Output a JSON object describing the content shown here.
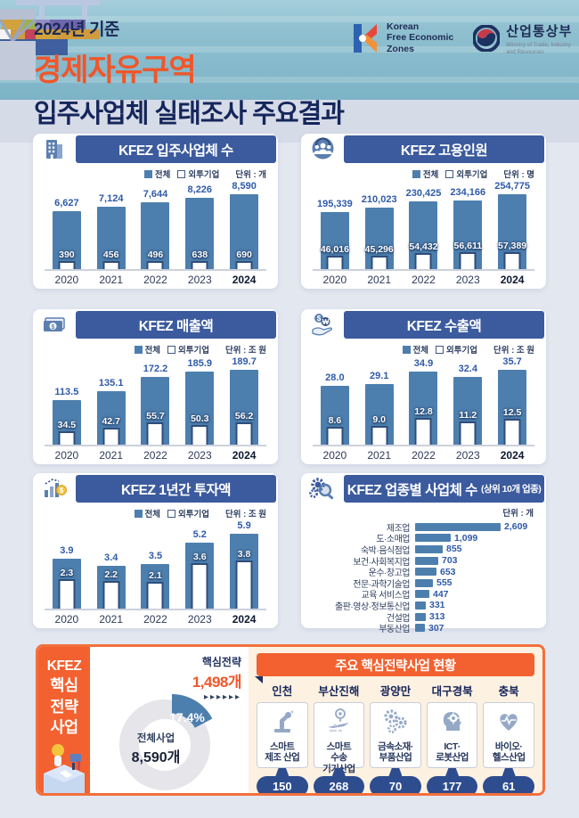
{
  "header": {
    "kicker": "2024년 기준",
    "title_orange": "경제자유구역",
    "title_navy": "입주사업체 실태조사 주요결과",
    "logo_kfez_lines": [
      "Korean",
      "Free Economic",
      "Zones"
    ],
    "logo_motie_name": "산업통상부",
    "logo_motie_sub1": "Ministry of Trade, Industry",
    "logo_motie_sub2": "and Resources"
  },
  "legend": {
    "total": "전체",
    "foreign": "외투기업"
  },
  "colors": {
    "bar_blue": "#4d7fae",
    "header_navy": "#3c5b9e",
    "title_orange": "#f0562a",
    "pill_navy": "#2e4d8f",
    "water_teal": "#7db3c7"
  },
  "chart_data": [
    {
      "type": "bar",
      "title": "KFEZ 입주사업체 수",
      "title_suffix": "",
      "icon": "building-icon",
      "unit_label": "단위 : 개",
      "categories": [
        "2020",
        "2021",
        "2022",
        "2023",
        "2024"
      ],
      "series": [
        {
          "name": "전체",
          "values": [
            6627,
            7124,
            7644,
            8226,
            8590
          ],
          "labels": [
            "6,627",
            "7,124",
            "7,644",
            "8,226",
            "8,590"
          ]
        },
        {
          "name": "외투기업",
          "values": [
            390,
            456,
            496,
            638,
            690
          ],
          "labels": [
            "390",
            "456",
            "496",
            "638",
            "690"
          ]
        }
      ]
    },
    {
      "type": "bar",
      "title": "KFEZ 고용인원",
      "title_suffix": "",
      "icon": "people-icon",
      "unit_label": "단위 : 명",
      "categories": [
        "2020",
        "2021",
        "2022",
        "2023",
        "2024"
      ],
      "series": [
        {
          "name": "전체",
          "values": [
            195339,
            210023,
            230425,
            234166,
            254775
          ],
          "labels": [
            "195,339",
            "210,023",
            "230,425",
            "234,166",
            "254,775"
          ]
        },
        {
          "name": "외투기업",
          "values": [
            46016,
            45296,
            54432,
            56611,
            57389
          ],
          "labels": [
            "46,016",
            "45,296",
            "54,432",
            "56,611",
            "57,389"
          ]
        }
      ]
    },
    {
      "type": "bar",
      "title": "KFEZ 매출액",
      "title_suffix": "",
      "icon": "money-icon",
      "unit_label": "단위 : 조 원",
      "categories": [
        "2020",
        "2021",
        "2022",
        "2023",
        "2024"
      ],
      "series": [
        {
          "name": "전체",
          "values": [
            113.5,
            135.1,
            172.2,
            185.9,
            189.7
          ],
          "labels": [
            "113.5",
            "135.1",
            "172.2",
            "185.9",
            "189.7"
          ]
        },
        {
          "name": "외투기업",
          "values": [
            34.5,
            42.7,
            55.7,
            50.3,
            56.2
          ],
          "labels": [
            "34.5",
            "42.7",
            "55.7",
            "50.3",
            "56.2"
          ]
        }
      ]
    },
    {
      "type": "bar",
      "title": "KFEZ 수출액",
      "title_suffix": "",
      "icon": "export-icon",
      "unit_label": "단위 : 조 원",
      "categories": [
        "2020",
        "2021",
        "2022",
        "2023",
        "2024"
      ],
      "series": [
        {
          "name": "전체",
          "values": [
            28.0,
            29.1,
            34.9,
            32.4,
            35.7
          ],
          "labels": [
            "28.0",
            "29.1",
            "34.9",
            "32.4",
            "35.7"
          ]
        },
        {
          "name": "외투기업",
          "values": [
            8.6,
            9.0,
            12.8,
            11.2,
            12.5
          ],
          "labels": [
            "8.6",
            "9.0",
            "12.8",
            "11.2",
            "12.5"
          ]
        }
      ]
    },
    {
      "type": "bar",
      "title": "KFEZ 1년간 투자액",
      "title_suffix": "",
      "icon": "investment-icon",
      "unit_label": "단위 : 조 원",
      "categories": [
        "2020",
        "2021",
        "2022",
        "2023",
        "2024"
      ],
      "series": [
        {
          "name": "전체",
          "values": [
            3.9,
            3.4,
            3.5,
            5.2,
            5.9
          ],
          "labels": [
            "3.9",
            "3.4",
            "3.5",
            "5.2",
            "5.9"
          ]
        },
        {
          "name": "외투기업",
          "values": [
            2.3,
            2.2,
            2.1,
            3.6,
            3.8
          ],
          "labels": [
            "2.3",
            "2.2",
            "2.1",
            "3.6",
            "3.8"
          ]
        }
      ]
    },
    {
      "type": "hbar",
      "title": "KFEZ 업종별 사업체 수",
      "title_suffix": "(상위 10개 업종)",
      "icon": "industry-icon",
      "unit_label": "단위 : 개",
      "categories": [
        "제조업",
        "도·소매업",
        "숙박·음식점업",
        "보건·사회복지업",
        "운수·창고업",
        "전문·과학기술업",
        "교육 서비스업",
        "출판·영상·정보통신업",
        "건설업",
        "부동산업"
      ],
      "values": [
        2609,
        1099,
        855,
        703,
        653,
        555,
        447,
        331,
        313,
        307
      ],
      "labels": [
        "2,609",
        "1,099",
        "855",
        "703",
        "653",
        "555",
        "447",
        "331",
        "313",
        "307"
      ]
    }
  ],
  "strategy": {
    "sidebar_lines": [
      "KFEZ",
      "핵심",
      "전략",
      "사업"
    ],
    "donut": {
      "percent": 17.4,
      "percent_label": "17.4%",
      "slice_title": "핵심전략",
      "slice_value": "1,498개",
      "arrows": "▶▶▶▶▶▶",
      "center_title": "전체사업",
      "center_value": "8,590개"
    },
    "panel_title": "주요 핵심전략사업  현황",
    "regions": [
      {
        "name": "인천",
        "icon": "robot-arm-icon",
        "industry_lines": [
          "스마트",
          "제조 산업"
        ],
        "count": "150"
      },
      {
        "name": "부산진해",
        "icon": "transport-icon",
        "industry_lines": [
          "스마트",
          "수송",
          "기기산업"
        ],
        "count": "268"
      },
      {
        "name": "광양만",
        "icon": "gears-icon",
        "industry_lines": [
          "금속소재·",
          "부품산업"
        ],
        "count": "70"
      },
      {
        "name": "대구경북",
        "icon": "ai-head-icon",
        "industry_lines": [
          "ICT·",
          "로봇산업"
        ],
        "count": "177"
      },
      {
        "name": "충북",
        "icon": "health-heart-icon",
        "industry_lines": [
          "바이오·",
          "헬스산업"
        ],
        "count": "61"
      }
    ]
  }
}
